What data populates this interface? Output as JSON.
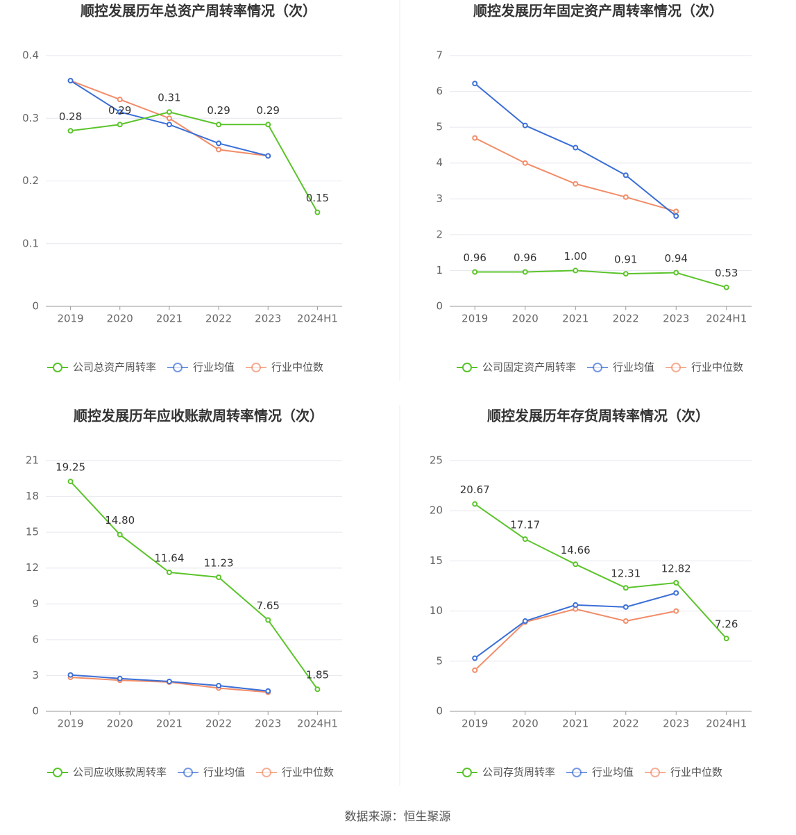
{
  "chart_data": [
    {
      "type": "line",
      "title": "顺控发展历年总资产周转率情况（次）",
      "categories": [
        "2019",
        "2020",
        "2021",
        "2022",
        "2023",
        "2024H1"
      ],
      "ylim": [
        0,
        0.4
      ],
      "yticks": [
        0,
        0.1,
        0.2,
        0.3,
        0.4
      ],
      "grid": true,
      "series": [
        {
          "name": "公司总资产周转率",
          "color": "#5ac42a",
          "values": [
            0.28,
            0.29,
            0.31,
            0.29,
            0.29,
            0.15
          ],
          "value_labels": [
            "0.28",
            "0.29",
            "0.31",
            "0.29",
            "0.29",
            "0.15"
          ]
        },
        {
          "name": "行业均值",
          "color": "#3b6fd6",
          "values": [
            0.36,
            0.31,
            0.29,
            0.26,
            0.24,
            null
          ]
        },
        {
          "name": "行业中位数",
          "color": "#f28c68",
          "values": [
            0.36,
            0.33,
            0.3,
            0.25,
            0.24,
            null
          ]
        }
      ]
    },
    {
      "type": "line",
      "title": "顺控发展历年固定资产周转率情况（次）",
      "categories": [
        "2019",
        "2020",
        "2021",
        "2022",
        "2023",
        "2024H1"
      ],
      "ylim": [
        0,
        7
      ],
      "yticks": [
        0,
        1,
        2,
        3,
        4,
        5,
        6,
        7
      ],
      "grid": true,
      "series": [
        {
          "name": "公司固定资产周转率",
          "color": "#5ac42a",
          "values": [
            0.96,
            0.96,
            1.0,
            0.91,
            0.94,
            0.53
          ],
          "value_labels": [
            "0.96",
            "0.96",
            "1.00",
            "0.91",
            "0.94",
            "0.53"
          ]
        },
        {
          "name": "行业均值",
          "color": "#3b6fd6",
          "values": [
            6.22,
            5.05,
            4.43,
            3.66,
            2.52,
            null
          ]
        },
        {
          "name": "行业中位数",
          "color": "#f28c68",
          "values": [
            4.7,
            4.0,
            3.42,
            3.05,
            2.65,
            null
          ]
        }
      ]
    },
    {
      "type": "line",
      "title": "顺控发展历年应收账款周转率情况（次）",
      "categories": [
        "2019",
        "2020",
        "2021",
        "2022",
        "2023",
        "2024H1"
      ],
      "ylim": [
        0,
        21
      ],
      "yticks": [
        0,
        3,
        6,
        9,
        12,
        15,
        18,
        21
      ],
      "grid": true,
      "series": [
        {
          "name": "公司应收账款周转率",
          "color": "#5ac42a",
          "values": [
            19.25,
            14.8,
            11.64,
            11.23,
            7.65,
            1.85
          ],
          "value_labels": [
            "19.25",
            "14.80",
            "11.64",
            "11.23",
            "7.65",
            "1.85"
          ]
        },
        {
          "name": "行业均值",
          "color": "#3b6fd6",
          "values": [
            3.05,
            2.75,
            2.5,
            2.15,
            1.7,
            null
          ]
        },
        {
          "name": "行业中位数",
          "color": "#f28c68",
          "values": [
            2.85,
            2.6,
            2.45,
            1.95,
            1.6,
            null
          ]
        }
      ]
    },
    {
      "type": "line",
      "title": "顺控发展历年存货周转率情况（次）",
      "categories": [
        "2019",
        "2020",
        "2021",
        "2022",
        "2023",
        "2024H1"
      ],
      "ylim": [
        0,
        25
      ],
      "yticks": [
        0,
        5,
        10,
        15,
        20,
        25
      ],
      "grid": true,
      "series": [
        {
          "name": "公司存货周转率",
          "color": "#5ac42a",
          "values": [
            20.67,
            17.17,
            14.66,
            12.31,
            12.82,
            7.26
          ],
          "value_labels": [
            "20.67",
            "17.17",
            "14.66",
            "12.31",
            "12.82",
            "7.26"
          ]
        },
        {
          "name": "行业均值",
          "color": "#3b6fd6",
          "values": [
            5.3,
            9.0,
            10.6,
            10.4,
            11.8,
            null
          ]
        },
        {
          "name": "行业中位数",
          "color": "#f28c68",
          "values": [
            4.1,
            8.9,
            10.2,
            9.0,
            10.0,
            null
          ]
        }
      ]
    }
  ],
  "source": "数据来源：恒生聚源"
}
